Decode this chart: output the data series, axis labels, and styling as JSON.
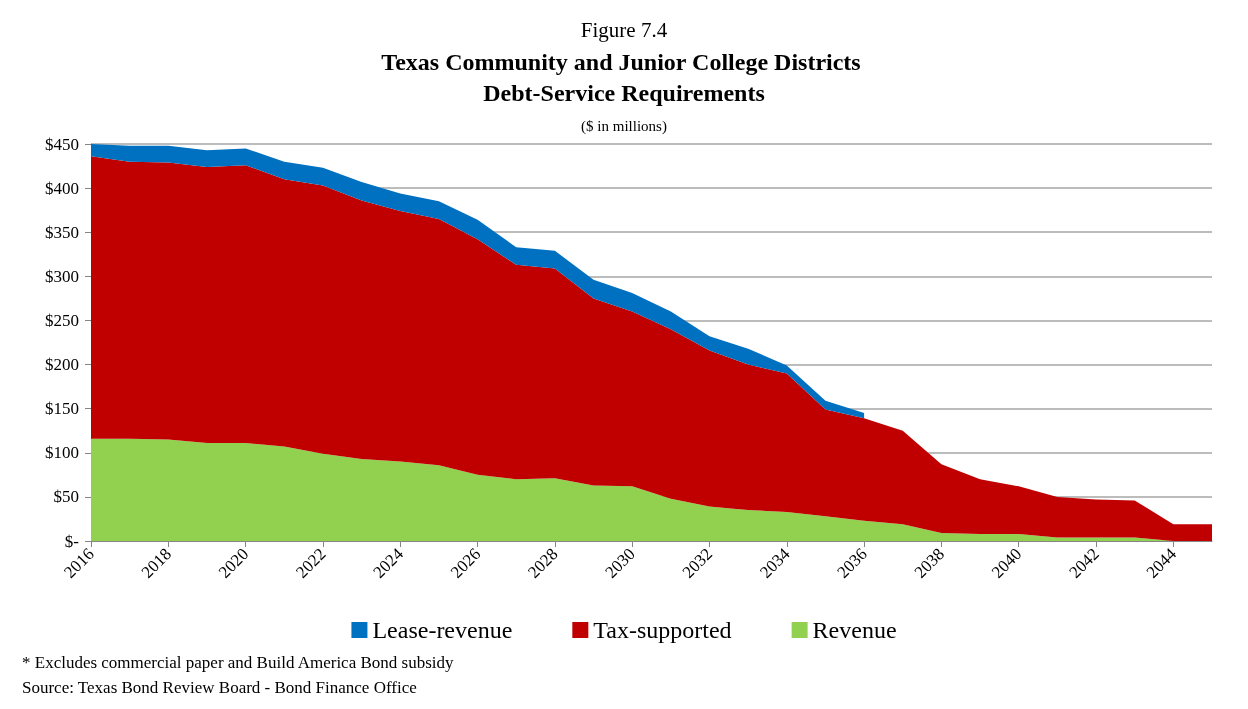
{
  "chart_data": {
    "type": "area",
    "title": "Figure 7.4",
    "subtitle": "Texas Community and Junior College Districts Debt-Service Requirements",
    "ylabel": "($ in millions)",
    "x": [
      2016,
      2017,
      2018,
      2019,
      2020,
      2021,
      2022,
      2023,
      2024,
      2025,
      2026,
      2027,
      2028,
      2029,
      2030,
      2031,
      2032,
      2033,
      2034,
      2035,
      2036,
      2037,
      2038,
      2039,
      2040,
      2041,
      2042,
      2043,
      2044,
      2045
    ],
    "stacked": true,
    "series": [
      {
        "name": "Revenue",
        "color": "#92d050",
        "values": [
          116,
          116,
          115,
          111,
          111,
          107,
          99,
          93,
          90,
          86,
          75,
          70,
          71,
          63,
          62,
          48,
          39,
          35,
          33,
          28,
          23,
          19,
          9,
          8,
          8,
          4,
          4,
          4,
          0,
          0
        ]
      },
      {
        "name": "Tax-supported",
        "color": "#c00000",
        "values": [
          320,
          314,
          314,
          313,
          315,
          303,
          304,
          293,
          284,
          279,
          267,
          243,
          238,
          212,
          198,
          192,
          177,
          165,
          157,
          121,
          116,
          106,
          78,
          62,
          54,
          46,
          43,
          42,
          19,
          19
        ]
      },
      {
        "name": "Lease-revenue",
        "color": "#0070c0",
        "values": [
          14,
          18,
          19,
          19,
          19,
          20,
          20,
          21,
          20,
          20,
          22,
          20,
          20,
          21,
          21,
          20,
          16,
          18,
          9,
          10,
          6,
          null,
          null,
          null,
          null,
          null,
          null,
          null,
          null,
          null
        ]
      }
    ],
    "xlim": [
      2016,
      2045
    ],
    "xticks": [
      2016,
      2018,
      2020,
      2022,
      2024,
      2026,
      2028,
      2030,
      2032,
      2034,
      2036,
      2038,
      2040,
      2042,
      2044
    ],
    "ylim": [
      0,
      450
    ],
    "yticks": [
      {
        "value": 0,
        "label": "$-"
      },
      {
        "value": 50,
        "label": "$50"
      },
      {
        "value": 100,
        "label": "$100"
      },
      {
        "value": 150,
        "label": "$150"
      },
      {
        "value": 200,
        "label": "$200"
      },
      {
        "value": 250,
        "label": "$250"
      },
      {
        "value": 300,
        "label": "$300"
      },
      {
        "value": 350,
        "label": "$350"
      },
      {
        "value": 400,
        "label": "$400"
      },
      {
        "value": 450,
        "label": "$450"
      }
    ],
    "grid": "y",
    "legend": "bottom",
    "annotations": [
      "* Excludes commercial paper and Build America Bond subsidy",
      "Source: Texas Bond Review Board - Bond Finance Office"
    ]
  }
}
